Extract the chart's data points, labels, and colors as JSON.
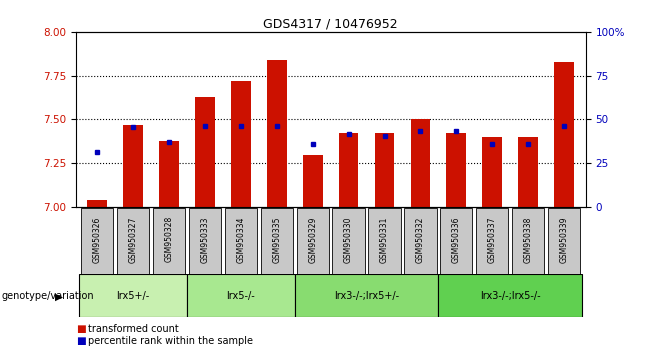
{
  "title": "GDS4317 / 10476952",
  "samples": [
    "GSM950326",
    "GSM950327",
    "GSM950328",
    "GSM950333",
    "GSM950334",
    "GSM950335",
    "GSM950329",
    "GSM950330",
    "GSM950331",
    "GSM950332",
    "GSM950336",
    "GSM950337",
    "GSM950338",
    "GSM950339"
  ],
  "red_values": [
    7.04,
    7.47,
    7.38,
    7.63,
    7.72,
    7.84,
    7.3,
    7.42,
    7.42,
    7.5,
    7.42,
    7.4,
    7.4,
    7.83
  ],
  "blue_values": [
    7.315,
    7.455,
    7.37,
    7.462,
    7.462,
    7.462,
    7.36,
    7.415,
    7.405,
    7.435,
    7.435,
    7.36,
    7.36,
    7.462
  ],
  "ylim_left": [
    7.0,
    8.0
  ],
  "ylim_right": [
    0,
    100
  ],
  "yticks_left": [
    7.0,
    7.25,
    7.5,
    7.75,
    8.0
  ],
  "yticks_right": [
    0,
    25,
    50,
    75,
    100
  ],
  "groups": [
    {
      "label": "lrx5+/-",
      "start": 0,
      "end": 3,
      "color": "#c8f0b0"
    },
    {
      "label": "lrx5-/-",
      "start": 3,
      "end": 6,
      "color": "#a8e890"
    },
    {
      "label": "lrx3-/-;lrx5+/-",
      "start": 6,
      "end": 10,
      "color": "#88dc70"
    },
    {
      "label": "lrx3-/-;lrx5-/-",
      "start": 10,
      "end": 14,
      "color": "#60d050"
    }
  ],
  "bar_width": 0.55,
  "bar_color": "#cc1100",
  "dot_color": "#0000bb",
  "bg_color": "#ffffff",
  "axis_color_left": "#cc1100",
  "axis_color_right": "#0000bb",
  "xlabel_area_color": "#c8c8c8",
  "genotype_label": "genotype/variation",
  "legend_red": "transformed count",
  "legend_blue": "percentile rank within the sample"
}
